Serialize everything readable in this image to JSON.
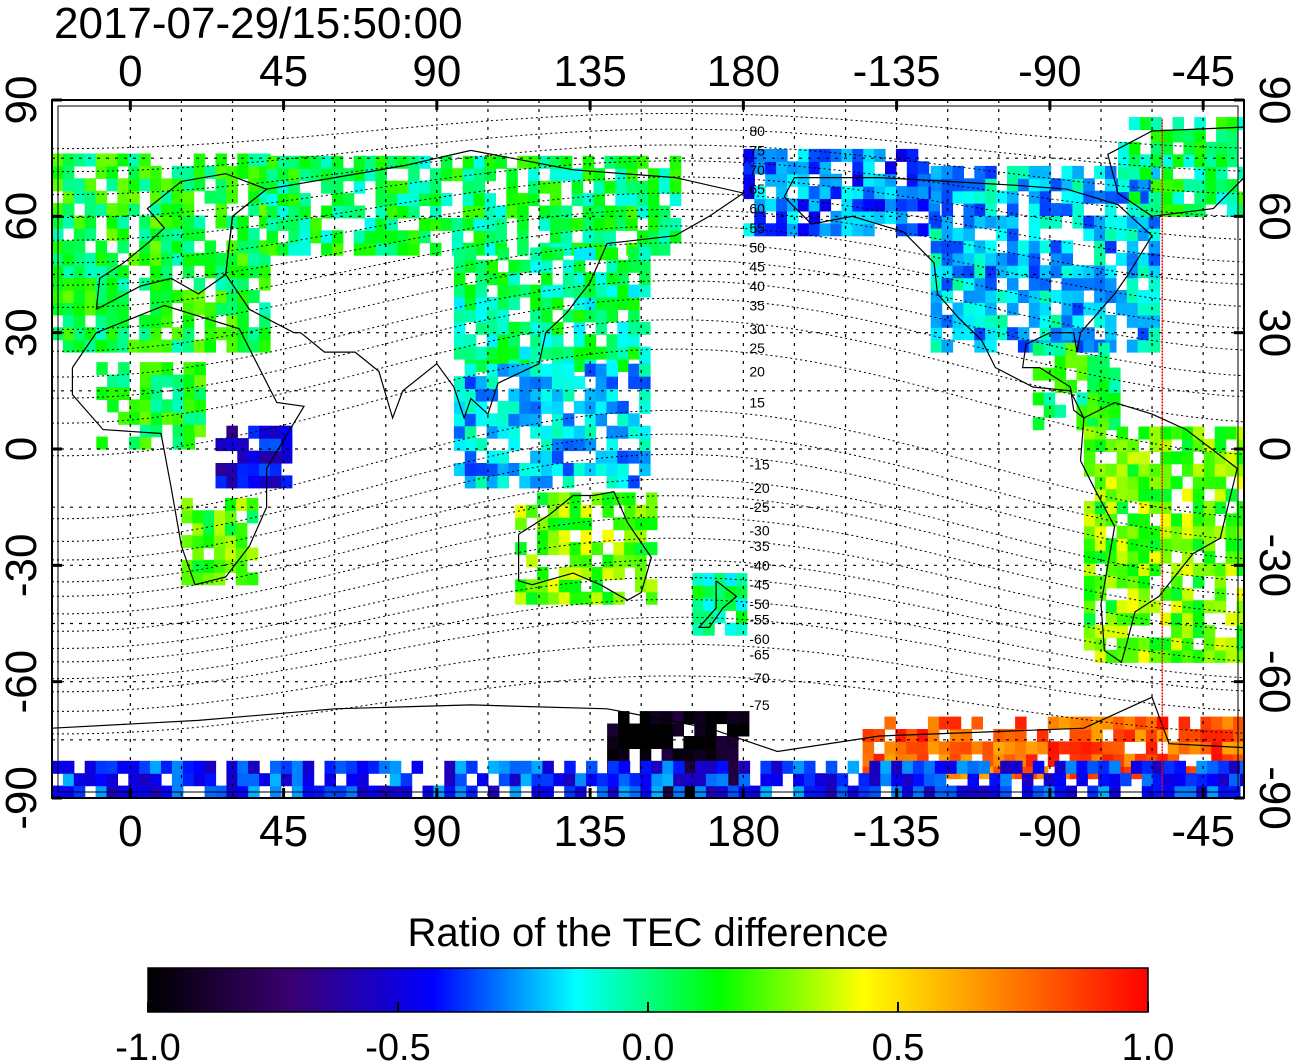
{
  "timestamp": "2017-07-29/15:50:00",
  "map": {
    "projection": "equirectangular",
    "central_longitude": 152,
    "lon_range": [
      -23,
      327
    ],
    "lat_range": [
      -90,
      90
    ],
    "grid": "on (dotted)",
    "lon_ticks": [
      "0",
      "45",
      "90",
      "135",
      "180",
      "-135",
      "-90",
      "-45"
    ],
    "lon_tick_values": [
      0,
      45,
      90,
      135,
      180,
      225,
      270,
      315
    ],
    "lat_ticks": [
      "90",
      "60",
      "30",
      "0",
      "-30",
      "-60",
      "-90"
    ],
    "lat_tick_values": [
      90,
      60,
      30,
      0,
      -30,
      -60,
      -90
    ],
    "terminator_line": {
      "color": "#ff0000",
      "lon": 303
    },
    "magnetic_latitude_labels": {
      "lon": 180,
      "values": [
        "80",
        "75",
        "70",
        "65",
        "60",
        "55",
        "50",
        "45",
        "40",
        "35",
        "30",
        "25",
        "20",
        "15",
        "-15",
        "-20",
        "-25",
        "-30",
        "-35",
        "-40",
        "-45",
        "-50",
        "-55",
        "-60",
        "-65",
        "-70",
        "-75"
      ],
      "lat_positions": [
        82,
        77,
        72,
        67,
        62,
        57,
        52,
        47,
        42,
        37,
        31,
        26,
        20,
        12,
        -4,
        -10,
        -15,
        -21,
        -25,
        -30,
        -35,
        -40,
        -44,
        -49,
        -53,
        -59,
        -66
      ]
    },
    "data_regions": [
      {
        "name": "europe",
        "lon": [
          -23,
          40
        ],
        "lat": [
          25,
          75
        ],
        "value": 0.1
      },
      {
        "name": "north-asia",
        "lon": [
          40,
          160
        ],
        "lat": [
          50,
          75
        ],
        "value": 0.05
      },
      {
        "name": "east-asia",
        "lon": [
          95,
          150
        ],
        "lat": [
          20,
          50
        ],
        "value": 0.0
      },
      {
        "name": "africa-north",
        "lon": [
          -10,
          20
        ],
        "lat": [
          0,
          20
        ],
        "value": 0.1
      },
      {
        "name": "east-africa",
        "lon": [
          25,
          45
        ],
        "lat": [
          -10,
          5
        ],
        "value": -0.5
      },
      {
        "name": "south-africa",
        "lon": [
          15,
          35
        ],
        "lat": [
          -35,
          -15
        ],
        "value": 0.2
      },
      {
        "name": "se-asia",
        "lon": [
          95,
          150
        ],
        "lat": [
          -10,
          20
        ],
        "value": -0.2
      },
      {
        "name": "australia",
        "lon": [
          113,
          153
        ],
        "lat": [
          -40,
          -12
        ],
        "value": 0.25
      },
      {
        "name": "new-zealand",
        "lon": [
          165,
          180
        ],
        "lat": [
          -48,
          -35
        ],
        "value": 0.0
      },
      {
        "name": "alaska-siberia",
        "lon": [
          180,
          235
        ],
        "lat": [
          55,
          75
        ],
        "value": -0.3
      },
      {
        "name": "north-america",
        "lon": [
          235,
          300
        ],
        "lat": [
          25,
          70
        ],
        "value": -0.2
      },
      {
        "name": "greenland",
        "lon": [
          290,
          327
        ],
        "lat": [
          60,
          85
        ],
        "value": 0.05
      },
      {
        "name": "central-america",
        "lon": [
          265,
          290
        ],
        "lat": [
          5,
          25
        ],
        "value": 0.1
      },
      {
        "name": "south-america",
        "lon": [
          280,
          327
        ],
        "lat": [
          -55,
          5
        ],
        "value": 0.25
      },
      {
        "name": "antarctic-pacific",
        "lon": [
          140,
          180
        ],
        "lat": [
          -90,
          -70
        ],
        "value": -1.0
      },
      {
        "name": "antarctic-atlantic",
        "lon": [
          215,
          327
        ],
        "lat": [
          -85,
          -70
        ],
        "value": 0.8
      },
      {
        "name": "antarctic-band",
        "lon": [
          -23,
          327
        ],
        "lat": [
          -90,
          -82
        ],
        "value": -0.4
      }
    ]
  },
  "colorbar": {
    "title": "Ratio of the TEC difference",
    "range": [
      -1.0,
      1.0
    ],
    "tick_labels": [
      "-1.0",
      "-0.5",
      "0.0",
      "0.5",
      "1.0"
    ],
    "tick_values": [
      -1.0,
      -0.5,
      0.0,
      0.5,
      1.0
    ],
    "colors": [
      "#000000",
      "#3a0070",
      "#0000ff",
      "#00ffff",
      "#00ff00",
      "#ffff00",
      "#ff7f00",
      "#ff0000"
    ]
  }
}
